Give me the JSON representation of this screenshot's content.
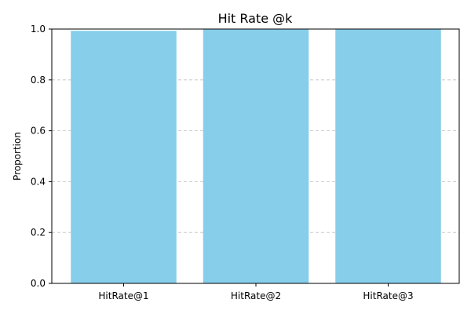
{
  "chart_data": {
    "type": "bar",
    "title": "Hit Rate @k",
    "xlabel": "",
    "ylabel": "Proportion",
    "categories": [
      "HitRate@1",
      "HitRate@2",
      "HitRate@3"
    ],
    "values": [
      0.993,
      1.0,
      1.0
    ],
    "ylim": [
      0,
      1.0
    ],
    "yticks": [
      "0.0",
      "0.2",
      "0.4",
      "0.6",
      "0.8",
      "1.0"
    ],
    "grid": "y-dashed",
    "bar_color": "#87ceeb"
  }
}
